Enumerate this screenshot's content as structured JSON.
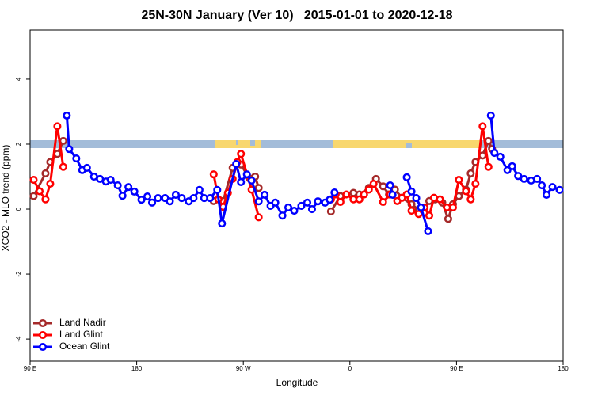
{
  "chart_data": {
    "type": "line",
    "title": "25N-30N January (Ver 10)   2015-01-01 to 2020-12-18",
    "x_label": "Longitude",
    "y_label": "XCO2 - MLO trend (ppm)",
    "xlim": [
      90,
      540
    ],
    "ylim": [
      -4.68,
      5.51
    ],
    "xticks": [
      {
        "value": 90,
        "label": "90 E"
      },
      180,
      {
        "value": 270,
        "label": "90 W"
      },
      {
        "value": 360,
        "label": "0"
      },
      {
        "value": 450,
        "label": "90 E"
      },
      {
        "value": 540,
        "label": "180"
      }
    ],
    "yticks": [
      -4,
      -2,
      0,
      2,
      4
    ],
    "legend": "bottom-left",
    "series": [
      {
        "name": "Land Nadir",
        "color": "#a52a2a",
        "x": [
          93,
          103,
          107,
          113,
          118,
          null,
          245,
          253,
          261,
          268,
          275,
          280,
          283,
          null,
          344,
          352,
          363,
          368,
          376,
          382,
          388,
          393,
          398,
          404,
          412,
          418,
          423,
          427,
          432,
          438,
          443,
          447,
          452,
          458,
          462,
          466,
          472,
          477,
          480
        ],
        "values": [
          0.4,
          1.1,
          1.45,
          1.7,
          2.1,
          null,
          0.25,
          0.25,
          1.27,
          1.37,
          0.95,
          1.0,
          0.65,
          null,
          -0.07,
          0.4,
          0.5,
          0.45,
          0.65,
          0.93,
          0.7,
          0.45,
          0.6,
          0.35,
          0.15,
          -0.02,
          0.05,
          0.25,
          0.3,
          0.2,
          -0.3,
          0.15,
          0.4,
          0.6,
          1.1,
          1.45,
          1.65,
          2.1,
          1.85
        ]
      },
      {
        "name": "Land Glint",
        "color": "#ff0000",
        "x": [
          93,
          98,
          103,
          107,
          113,
          118,
          null,
          245,
          249,
          253,
          257,
          261,
          265,
          268,
          277,
          283,
          null,
          344,
          348,
          352,
          357,
          363,
          368,
          372,
          376,
          380,
          388,
          394,
          400,
          404,
          408,
          412,
          418,
          423,
          427,
          431,
          436,
          442,
          447,
          452,
          458,
          462,
          466,
          472,
          477
        ],
        "values": [
          0.9,
          0.55,
          0.3,
          0.78,
          2.55,
          1.3,
          null,
          1.07,
          0.3,
          0.07,
          0.5,
          0.93,
          1.45,
          1.7,
          0.6,
          -0.25,
          null,
          0.3,
          0.45,
          0.22,
          0.45,
          0.3,
          0.3,
          0.45,
          0.6,
          0.78,
          0.22,
          0.45,
          0.25,
          0.35,
          0.45,
          -0.05,
          -0.15,
          0.05,
          -0.2,
          0.35,
          0.3,
          0.05,
          0.05,
          0.9,
          0.55,
          0.3,
          0.78,
          2.55,
          1.3
        ]
      },
      {
        "name": "Ocean Glint",
        "color": "#0000ff",
        "x": [
          121,
          123,
          129,
          134,
          138,
          144,
          149,
          154,
          158,
          164,
          168,
          173,
          178,
          184,
          189,
          193,
          198,
          204,
          208,
          213,
          218,
          224,
          228,
          233,
          237,
          242,
          248,
          252,
          264,
          268,
          273,
          277,
          283,
          288,
          293,
          297,
          303,
          308,
          313,
          319,
          324,
          328,
          333,
          339,
          343,
          347,
          null,
          394,
          396,
          null,
          408,
          412,
          416,
          420,
          426,
          null,
          479,
          482,
          487,
          493,
          497,
          502,
          507,
          513,
          518,
          522,
          526,
          531,
          537
        ],
        "values": [
          2.88,
          1.85,
          1.56,
          1.2,
          1.27,
          1.0,
          0.93,
          0.85,
          0.9,
          0.73,
          0.41,
          0.68,
          0.54,
          0.29,
          0.39,
          0.2,
          0.34,
          0.34,
          0.24,
          0.44,
          0.34,
          0.24,
          0.34,
          0.59,
          0.34,
          0.34,
          0.59,
          -0.44,
          1.39,
          0.83,
          1.07,
          0.88,
          0.24,
          0.44,
          0.1,
          0.2,
          -0.2,
          0.05,
          -0.05,
          0.1,
          0.2,
          0.0,
          0.24,
          0.2,
          0.29,
          0.51,
          null,
          0.73,
          0.44,
          null,
          0.98,
          0.54,
          0.34,
          0.05,
          -0.68,
          null,
          2.88,
          1.73,
          1.61,
          1.2,
          1.32,
          1.02,
          0.93,
          0.88,
          0.93,
          0.73,
          0.44,
          0.68,
          0.59
        ]
      }
    ]
  }
}
